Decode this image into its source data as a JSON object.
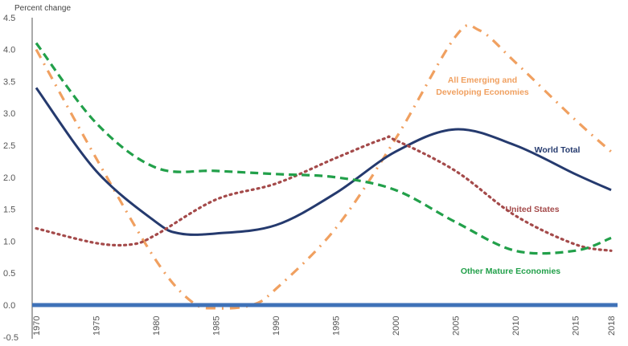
{
  "chart_data": {
    "type": "line",
    "title": "",
    "ylabel": "Percent change",
    "xlabel": "",
    "ylim": [
      -0.5,
      4.5
    ],
    "xlim": [
      1970,
      2018
    ],
    "yticks": [
      "4.5",
      "4.0",
      "3.5",
      "3.0",
      "2.5",
      "2.0",
      "1.5",
      "1.0",
      "0.5",
      "0.0",
      "-0.5"
    ],
    "ytick_values": [
      4.5,
      4.0,
      3.5,
      3.0,
      2.5,
      2.0,
      1.5,
      1.0,
      0.5,
      0.0,
      -0.5
    ],
    "xticks": [
      "1970",
      "1975",
      "1980",
      "1985",
      "1990",
      "1995",
      "2000",
      "2005",
      "2010",
      "2015",
      "2018"
    ],
    "xtick_values": [
      1970,
      1975,
      1980,
      1985,
      1990,
      1995,
      2000,
      2005,
      2010,
      2015,
      2018
    ],
    "grid": false,
    "legend": "inline labels",
    "series": [
      {
        "name": "All Emerging and Developing Economies",
        "label_lines": [
          "All Emerging and",
          "Developing Economies"
        ],
        "color": "#f0a060",
        "style": "dashdot",
        "x": [
          1970,
          1975,
          1980,
          1983,
          1985,
          1988,
          1990,
          1995,
          2000,
          2005,
          2007,
          2010,
          2015,
          2018
        ],
        "y": [
          4.0,
          2.3,
          0.7,
          0.05,
          -0.05,
          0.0,
          0.25,
          1.2,
          2.6,
          4.2,
          4.3,
          3.8,
          2.9,
          2.4
        ]
      },
      {
        "name": "World Total",
        "label_lines": [
          "World Total"
        ],
        "color": "#253a6e",
        "style": "solid",
        "x": [
          1970,
          1975,
          1980,
          1982,
          1985,
          1990,
          1995,
          2000,
          2005,
          2010,
          2015,
          2018
        ],
        "y": [
          3.4,
          2.1,
          1.3,
          1.12,
          1.12,
          1.25,
          1.75,
          2.4,
          2.75,
          2.5,
          2.05,
          1.8
        ]
      },
      {
        "name": "United States",
        "label_lines": [
          "United States"
        ],
        "color": "#a44a4a",
        "style": "dotted",
        "x": [
          1970,
          1975,
          1978,
          1980,
          1985,
          1990,
          1995,
          1999,
          2000,
          2005,
          2010,
          2015,
          2018
        ],
        "y": [
          1.2,
          0.97,
          0.95,
          1.1,
          1.65,
          1.9,
          2.3,
          2.6,
          2.58,
          2.1,
          1.4,
          0.95,
          0.85
        ]
      },
      {
        "name": "Other Mature Economies",
        "label_lines": [
          "Other Mature Economies"
        ],
        "color": "#22a04a",
        "style": "dashed",
        "x": [
          1970,
          1975,
          1980,
          1985,
          1990,
          1995,
          2000,
          2005,
          2010,
          2015,
          2018
        ],
        "y": [
          4.1,
          2.85,
          2.15,
          2.1,
          2.05,
          2.0,
          1.8,
          1.3,
          0.85,
          0.85,
          1.05
        ]
      }
    ]
  }
}
